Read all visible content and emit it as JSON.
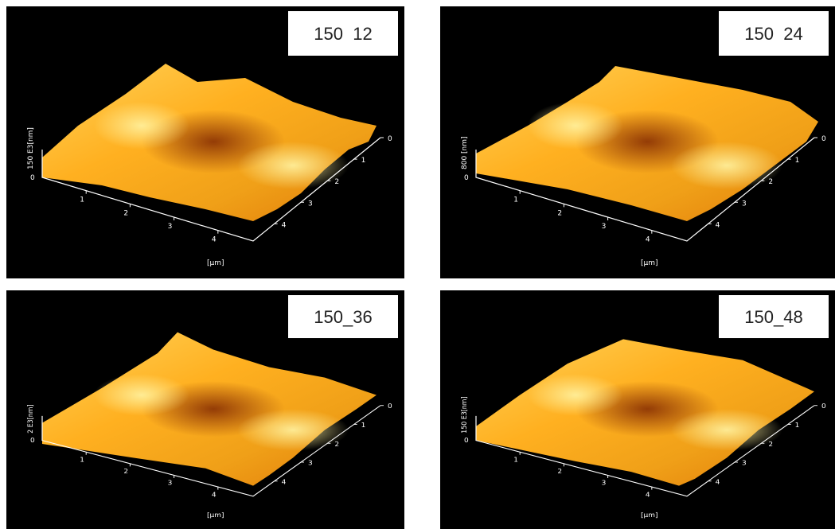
{
  "panels": [
    {
      "label": "150  12",
      "z_label": "150 E3[nm]",
      "z_tick": "0",
      "x_ticks": [
        "1",
        "2",
        "3",
        "4"
      ],
      "y_ticks": [
        "0",
        "1",
        "2",
        "3",
        "4"
      ],
      "unit": "[µm]"
    },
    {
      "label": "150  24",
      "z_label": "800 [nm]",
      "z_tick": "0",
      "x_ticks": [
        "1",
        "2",
        "3",
        "4"
      ],
      "y_ticks": [
        "0",
        "1",
        "2",
        "3",
        "4"
      ],
      "unit": "[µm]"
    },
    {
      "label": "150_36",
      "z_label": "2 E3[nm]",
      "z_tick": "0",
      "x_ticks": [
        "1",
        "2",
        "3",
        "4"
      ],
      "y_ticks": [
        "0",
        "1",
        "2",
        "3",
        "4"
      ],
      "unit": "[µm]"
    },
    {
      "label": "150_48",
      "z_label": "150 E3[nm]",
      "z_tick": "0",
      "x_ticks": [
        "1",
        "2",
        "3",
        "4"
      ],
      "y_ticks": [
        "0",
        "1",
        "2",
        "3",
        "4"
      ],
      "unit": "[µm]"
    }
  ]
}
